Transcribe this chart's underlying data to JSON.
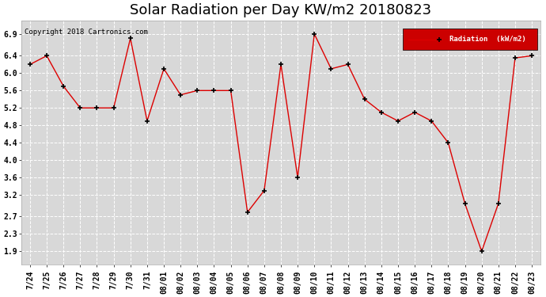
{
  "title": "Solar Radiation per Day KW/m2 20180823",
  "copyright_text": "Copyright 2018 Cartronics.com",
  "legend_label": "Radiation  (kW/m2)",
  "x_labels": [
    "7/24",
    "7/25",
    "7/26",
    "7/27",
    "7/28",
    "7/29",
    "7/30",
    "7/31",
    "08/01",
    "08/02",
    "08/03",
    "08/04",
    "08/05",
    "08/06",
    "08/07",
    "08/08",
    "08/09",
    "08/10",
    "08/11",
    "08/12",
    "08/13",
    "08/14",
    "08/15",
    "08/16",
    "08/17",
    "08/18",
    "08/19",
    "08/20",
    "08/21",
    "08/22",
    "08/23"
  ],
  "values": [
    6.2,
    6.4,
    5.7,
    5.2,
    5.2,
    5.2,
    6.8,
    4.9,
    6.1,
    5.5,
    5.6,
    5.6,
    5.6,
    2.8,
    3.3,
    6.2,
    3.6,
    6.9,
    6.1,
    6.2,
    5.4,
    5.1,
    4.9,
    5.1,
    4.9,
    4.4,
    3.0,
    1.9,
    3.0,
    6.35,
    6.4
  ],
  "line_color": "#dd0000",
  "marker_color": "#000000",
  "bg_color": "#ffffff",
  "plot_bg_color": "#d8d8d8",
  "grid_color": "#ffffff",
  "ylim": [
    1.6,
    7.2
  ],
  "yticks": [
    1.9,
    2.3,
    2.7,
    3.2,
    3.6,
    4.0,
    4.4,
    4.8,
    5.2,
    5.6,
    6.0,
    6.4,
    6.9
  ],
  "legend_bg": "#cc0000",
  "legend_text_color": "#ffffff",
  "title_fontsize": 13,
  "tick_fontsize": 7,
  "copyright_fontsize": 6.5
}
